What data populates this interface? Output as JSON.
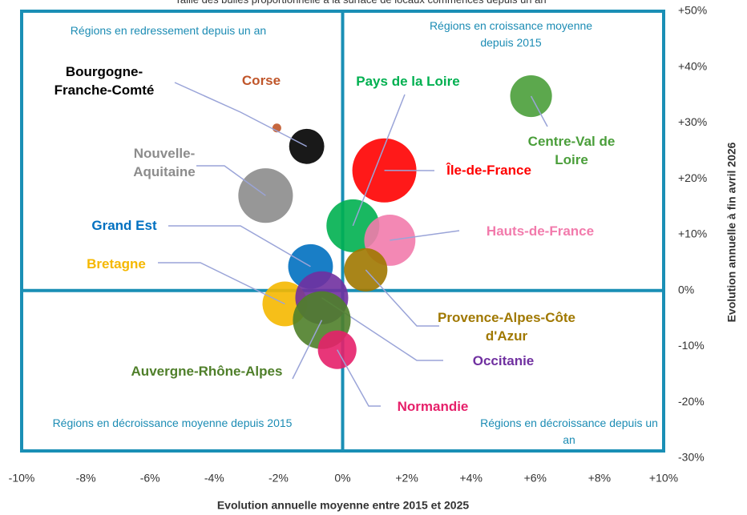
{
  "chart_data": {
    "type": "scatter",
    "subtitle": "Taille des bulles proportionnelle à la surface de locaux commencés depuis un an",
    "x_label": "Evolution  annuelle moyenne entre 2015 et 2025",
    "y_label": "Evolution  annuelle à fin avril 2026",
    "quadrant_labels": [
      "Régions en redressement depuis un an",
      "Régions en croissance moyenne depuis 2015",
      "Régions en décroissance  moyenne depuis 2015",
      "Régions en décroissance depuis un an"
    ],
    "xlim": [
      -10,
      10
    ],
    "xticks": [
      {
        "value": -10,
        "label": "-10%"
      },
      {
        "value": -8,
        "label": "-8%"
      },
      {
        "value": -6,
        "label": "-6%"
      },
      {
        "value": -4,
        "label": "-4%"
      },
      {
        "value": -2,
        "label": "-2%"
      },
      {
        "value": 0,
        "label": "0%"
      },
      {
        "value": 2,
        "label": "+2%"
      },
      {
        "value": 4,
        "label": "+4%"
      },
      {
        "value": 6,
        "label": "+6%"
      },
      {
        "value": 8,
        "label": "+8%"
      },
      {
        "value": 10,
        "label": "+10%"
      }
    ],
    "ylim": [
      -30,
      50
    ],
    "yticks": [
      {
        "value": -30,
        "label": "-30%"
      },
      {
        "value": -20,
        "label": "-20%"
      },
      {
        "value": -10,
        "label": "-10%"
      },
      {
        "value": 0,
        "label": "0%"
      },
      {
        "value": 10,
        "label": "+10%"
      },
      {
        "value": 20,
        "label": "+20%"
      },
      {
        "value": 30,
        "label": "+30%"
      },
      {
        "value": 40,
        "label": "+40%"
      },
      {
        "value": 50,
        "label": "+50%"
      }
    ],
    "series": [
      {
        "name": "Corse",
        "color": "#c0562a",
        "x": [
          -2.05
        ],
        "values": [
          29.1
        ],
        "sizes": [
          0.3
        ]
      },
      {
        "name": "Bourgogne-Franche-Comté",
        "color": "#000000",
        "x": [
          -1.12
        ],
        "values": [
          25.8
        ],
        "sizes": [
          4.8
        ]
      },
      {
        "name": "Nouvelle-Aquitaine",
        "color": "#8c8c8c",
        "x": [
          -2.4
        ],
        "values": [
          17.0
        ],
        "sizes": [
          11.6
        ]
      },
      {
        "name": "Île-de-France",
        "color": "#ff0000",
        "x": [
          1.3
        ],
        "values": [
          21.5
        ],
        "sizes": [
          16
        ]
      },
      {
        "name": "Centre-Val de Loire",
        "color": "#4a9e3a",
        "x": [
          5.87
        ],
        "values": [
          34.8
        ],
        "sizes": [
          6.8
        ]
      },
      {
        "name": "Pays de la Loire",
        "color": "#00b050",
        "x": [
          0.32
        ],
        "values": [
          11.6
        ],
        "sizes": [
          10.9
        ]
      },
      {
        "name": "Hauts-de-France",
        "color": "#f27bac",
        "x": [
          1.47
        ],
        "values": [
          9.0
        ],
        "sizes": [
          10.2
        ]
      },
      {
        "name": "Grand Est",
        "color": "#0070c0",
        "x": [
          -1.0
        ],
        "values": [
          4.3
        ],
        "sizes": [
          7.8
        ]
      },
      {
        "name": "Provence-Alpes-Côte d'Azur",
        "color": "#a07800",
        "x": [
          0.72
        ],
        "values": [
          3.7
        ],
        "sizes": [
          7.3
        ]
      },
      {
        "name": "Bretagne",
        "color": "#f5b800",
        "x": [
          -1.8
        ],
        "values": [
          -2.4
        ],
        "sizes": [
          7.8
        ]
      },
      {
        "name": "Occitanie",
        "color": "#7030a0",
        "x": [
          -0.65
        ],
        "values": [
          -1.3
        ],
        "sizes": [
          10.9
        ]
      },
      {
        "name": "Auvergne-Rhône-Alpes",
        "color": "#4f7f2a",
        "x": [
          -0.65
        ],
        "values": [
          -5.3
        ],
        "sizes": [
          13
        ]
      },
      {
        "name": "Normandie",
        "color": "#e6206a",
        "x": [
          -0.17
        ],
        "values": [
          -10.6
        ],
        "sizes": [
          5.8
        ]
      }
    ]
  }
}
